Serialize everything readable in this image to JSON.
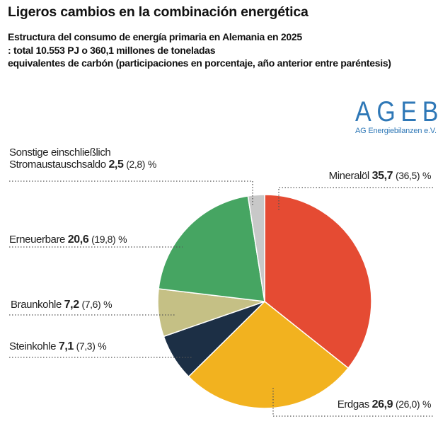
{
  "title": "Ligeros cambios en la combinación energética",
  "subtitle": [
    "Estructura del consumo de energía primaria en Alemania en 2025",
    ": total 10.553 PJ o 360,1 millones de toneladas",
    "equivalentes de carbón (participaciones en porcentaje, año anterior entre paréntesis)"
  ],
  "logo": {
    "main": "AGEB",
    "sub": "AG Energiebilanzen e.V.",
    "color": "#2f78b7"
  },
  "chart_data": {
    "type": "pie",
    "unit": "%",
    "start": "top, clockwise",
    "slices": [
      {
        "label": "Mineralöl",
        "value": 35.7,
        "value_text": "35,7",
        "previous_text": "(36,5)",
        "color": "#e54b33"
      },
      {
        "label": "Erdgas",
        "value": 26.9,
        "value_text": "26,9",
        "previous_text": "(26,0)",
        "color": "#f2b21f"
      },
      {
        "label": "Steinkohle",
        "value": 7.1,
        "value_text": "7,1",
        "previous_text": "(7,3)",
        "color": "#1c2f45"
      },
      {
        "label": "Braunkohle",
        "value": 7.2,
        "value_text": "7,2",
        "previous_text": "(7,6)",
        "color": "#c5c085"
      },
      {
        "label": "Erneuerbare",
        "value": 20.6,
        "value_text": "20,6",
        "previous_text": "(19,8)",
        "color": "#46a562"
      },
      {
        "label_lines": [
          "Sonstige einschließlich",
          "Stromaustauschsaldo"
        ],
        "value": 2.5,
        "value_text": "2,5",
        "previous_text": "(2,8)",
        "color": "#c8c8c8"
      }
    ],
    "percent_sign": "%"
  }
}
